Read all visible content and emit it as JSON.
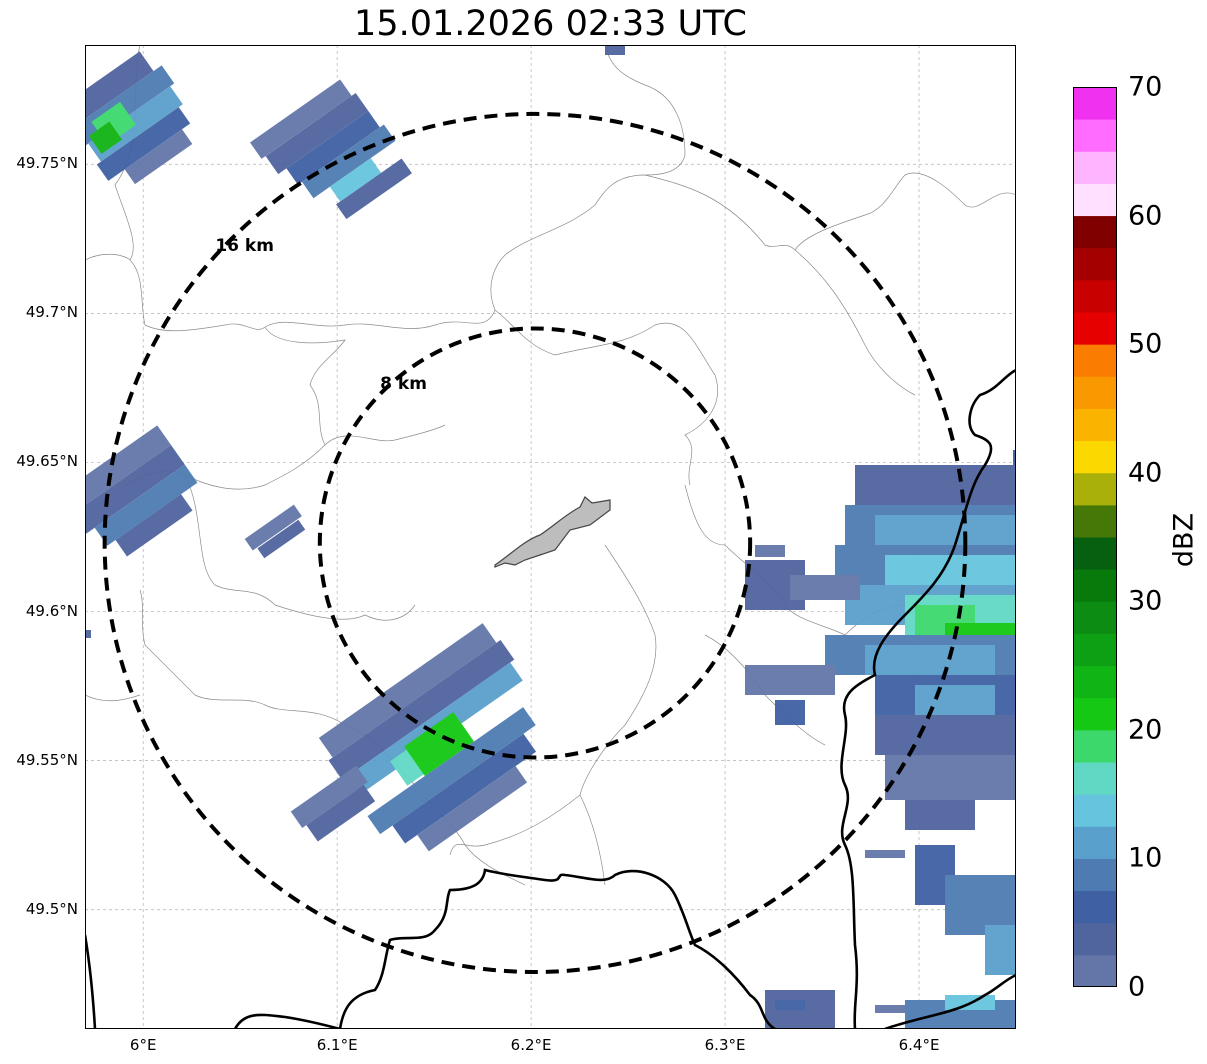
{
  "title": "15.01.2026 02:33 UTC",
  "map": {
    "lon_range": [
      5.97,
      6.45
    ],
    "lat_range": [
      49.46,
      49.79
    ],
    "lat_ticks": [
      {
        "value": 49.75,
        "label": "49.75°N"
      },
      {
        "value": 49.7,
        "label": "49.7°N"
      },
      {
        "value": 49.65,
        "label": "49.65°N"
      },
      {
        "value": 49.6,
        "label": "49.6°N"
      },
      {
        "value": 49.55,
        "label": "49.55°N"
      },
      {
        "value": 49.5,
        "label": "49.5°N"
      }
    ],
    "lon_ticks": [
      {
        "value": 6.0,
        "label": "6°E"
      },
      {
        "value": 6.1,
        "label": "6.1°E"
      },
      {
        "value": 6.2,
        "label": "6.2°E"
      },
      {
        "value": 6.3,
        "label": "6.3°E"
      },
      {
        "value": 6.4,
        "label": "6.4°E"
      }
    ],
    "gridlines": true,
    "radar_center": {
      "lon": 6.202,
      "lat": 49.623
    },
    "range_rings": [
      {
        "radius_km": 8,
        "label": "8 km"
      },
      {
        "radius_km": 16,
        "label": "16 km"
      }
    ]
  },
  "colorbar": {
    "label": "dBZ",
    "ticks": [
      "0",
      "10",
      "20",
      "30",
      "40",
      "50",
      "60",
      "70"
    ],
    "min": 0,
    "max": 70,
    "colors": [
      "#6476a8",
      "#50649e",
      "#4060a4",
      "#4e7cb2",
      "#5aa0cc",
      "#66c4de",
      "#60d8c4",
      "#3cd86c",
      "#14c814",
      "#10b414",
      "#0ea014",
      "#0c8c12",
      "#087a0c",
      "#066010",
      "#467808",
      "#aab00a",
      "#fad800",
      "#fab400",
      "#fa9800",
      "#fa7c00",
      "#e60000",
      "#c80000",
      "#a40000",
      "#800000",
      "#ffe0ff",
      "#ffb4ff",
      "#ff6cff",
      "#f032f0"
    ]
  }
}
